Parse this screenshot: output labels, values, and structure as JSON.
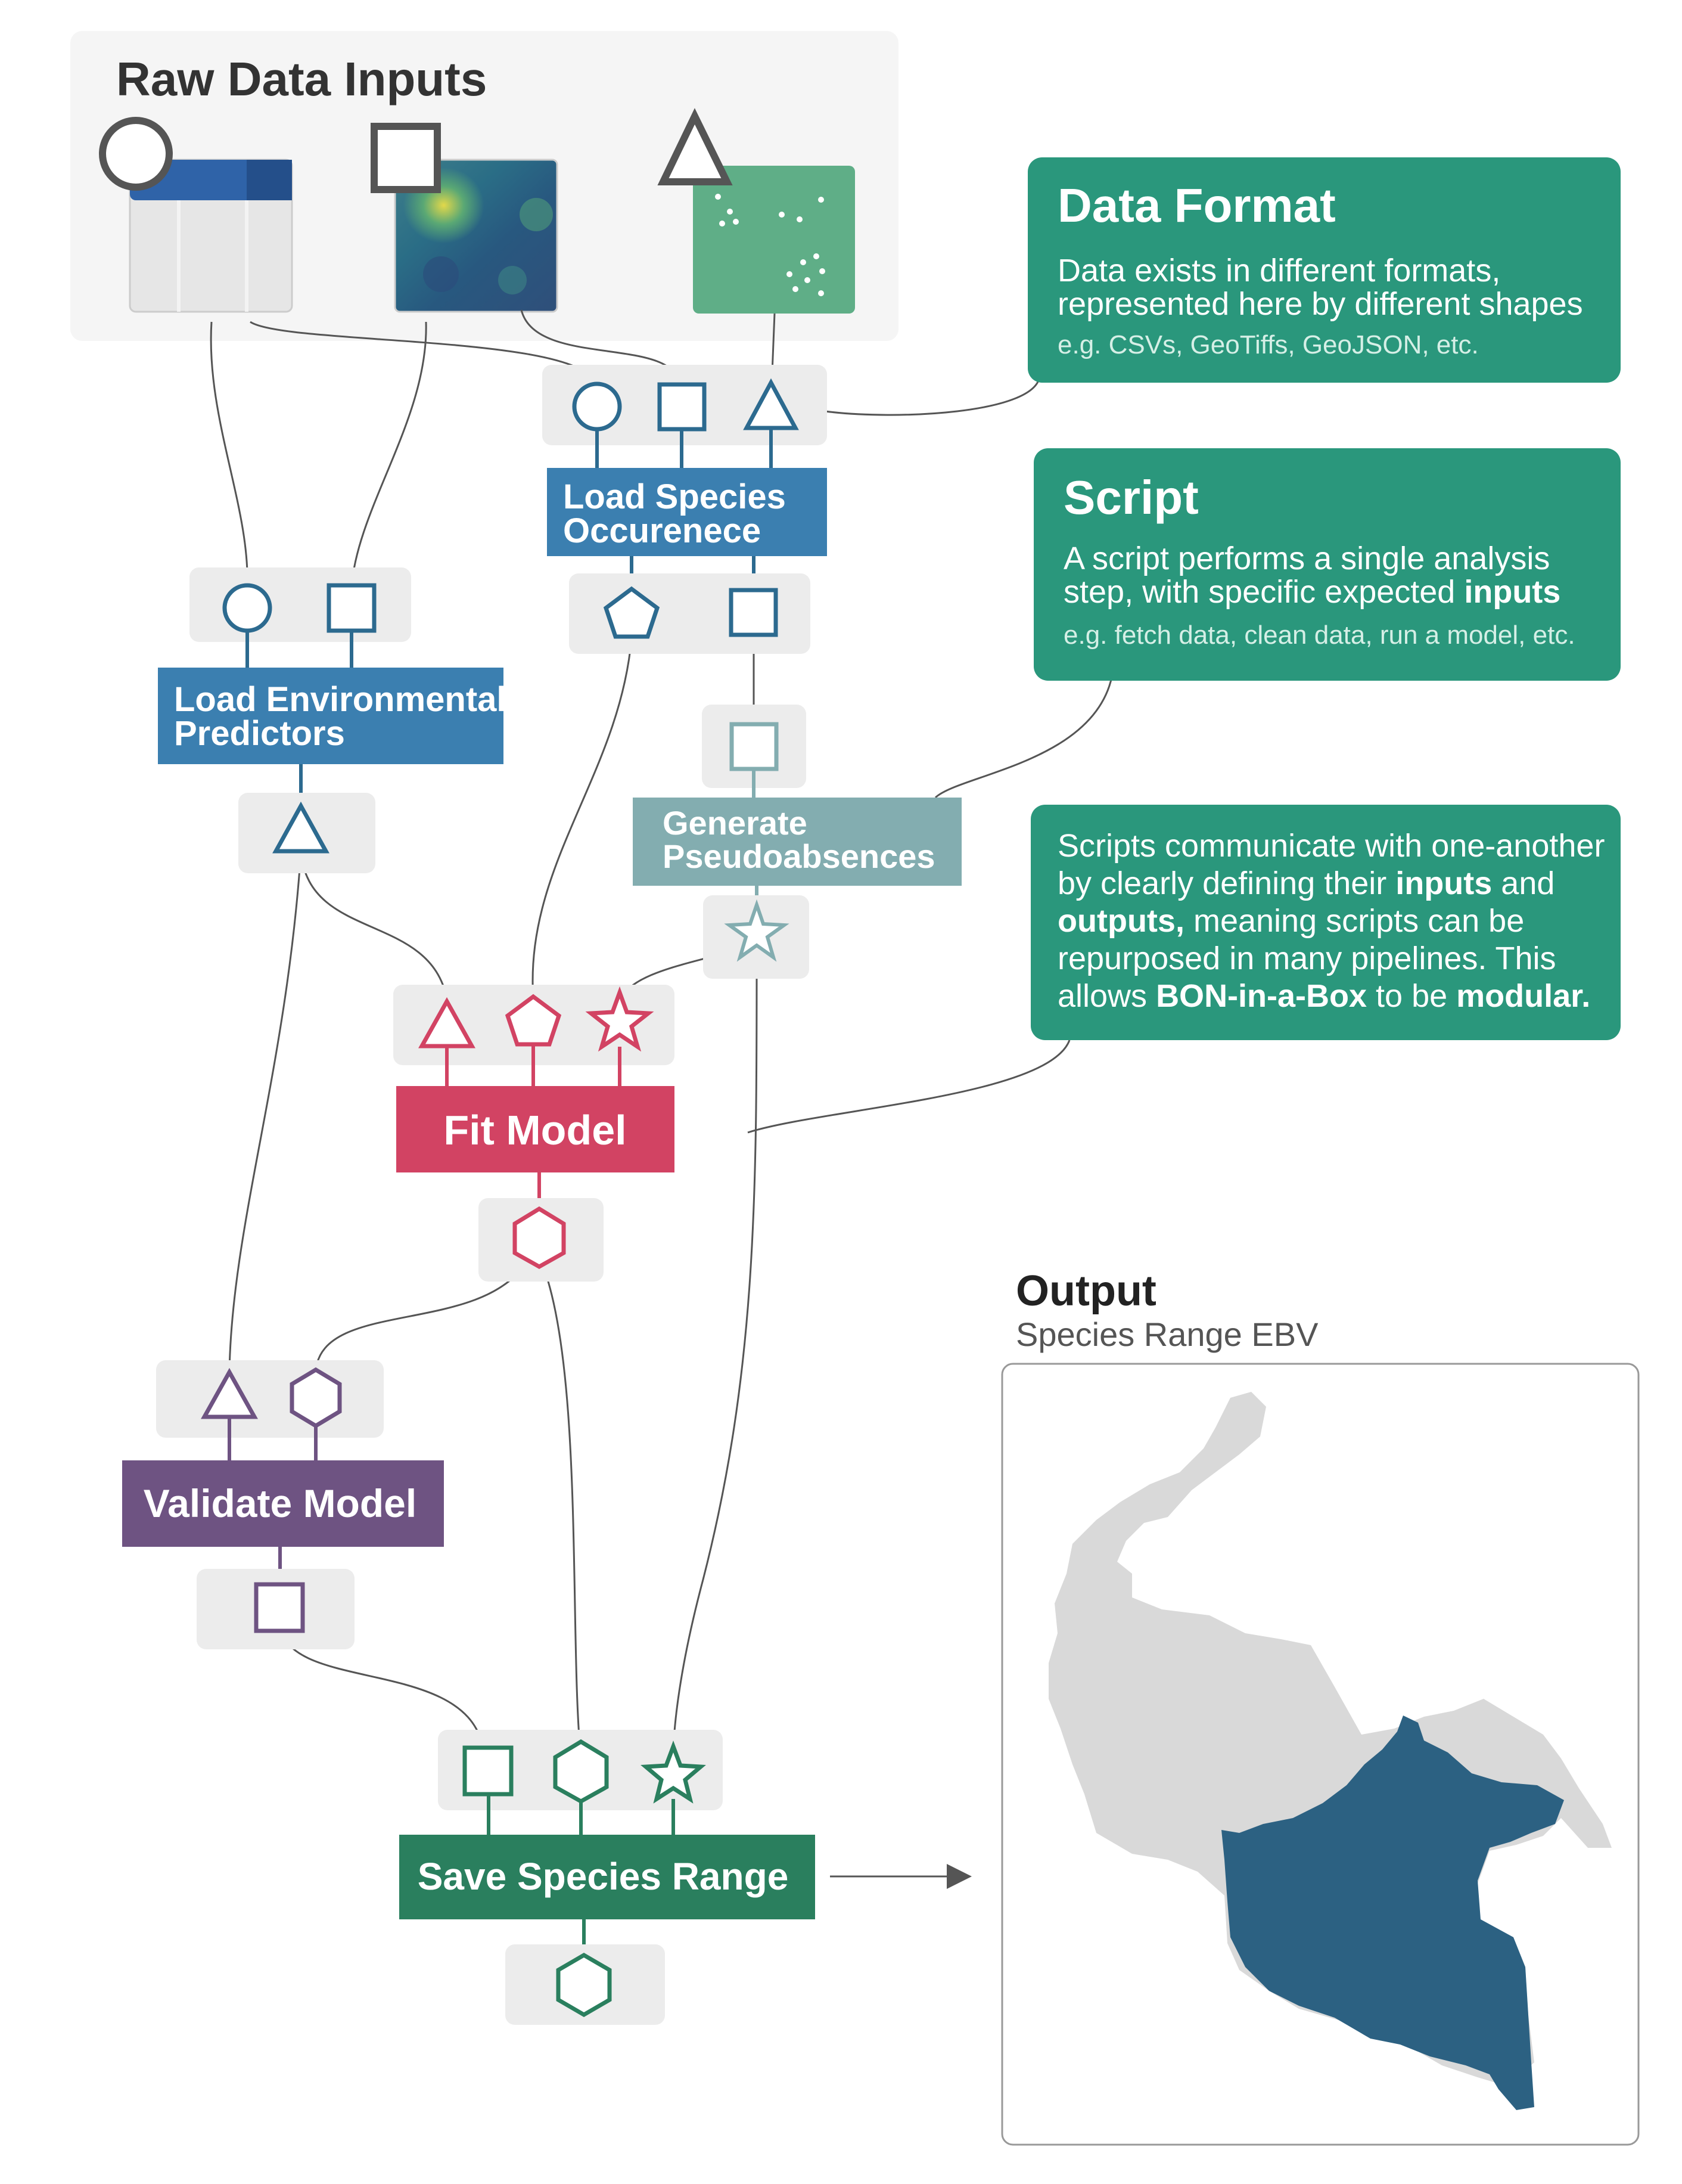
{
  "raw_inputs": {
    "title": "Raw Data Inputs"
  },
  "callouts": {
    "data_format": {
      "title": "Data Format",
      "line1": "Data exists in different formats,",
      "line2": "represented here by different shapes",
      "example": "e.g. CSVs, GeoTiffs, GeoJSON, etc."
    },
    "script": {
      "title": "Script",
      "line1": "A script performs a single analysis",
      "line2_pre": "step, with specific expected ",
      "line2_bold": "inputs",
      "example": "e.g. fetch data, clean data, run a model, etc."
    },
    "modular": {
      "line1": "Scripts communicate with one-another",
      "line2_pre": "by clearly defining their ",
      "line2_bold": "inputs",
      "line2_post": " and",
      "line3_bold": "outputs,",
      "line3_post": " meaning scripts can be",
      "line4": "repurposed in many pipelines. This",
      "line5_pre": "allows ",
      "line5_bold1": "BON-in-a-Box",
      "line5_mid": " to be ",
      "line5_bold2": "modular."
    }
  },
  "nodes": {
    "load_species_line1": "Load Species",
    "load_species_line2": "Occurenece",
    "load_env_line1": "Load Environmental",
    "load_env_line2": "Predictors",
    "pseudo_line1": "Generate",
    "pseudo_line2": "Pseudoabsences",
    "fit_model": "Fit Model",
    "validate_model": "Validate Model",
    "save_range": "Save Species Range"
  },
  "output": {
    "title": "Output",
    "subtitle": "Species Range EBV"
  },
  "colors": {
    "callout_green": "#2a977c",
    "load_blue": "#3b7fb0",
    "port_blue": "#2c6a8f",
    "pseudo_teal": "#83adb0",
    "fit_red": "#d24363",
    "validate_purple": "#6e5382",
    "save_green": "#2a7f5e",
    "map_grey": "#d9d9d9",
    "map_blue": "#2c6182"
  }
}
